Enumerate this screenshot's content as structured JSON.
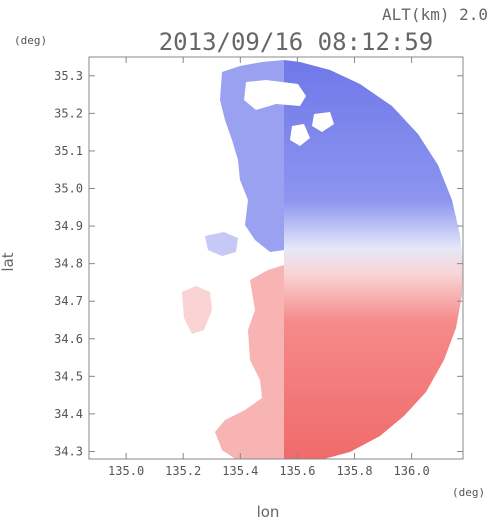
{
  "header": {
    "altitude": "ALT(km) 2.0",
    "timestamp": "2013/09/16 08:12:59"
  },
  "colors": {
    "approach": "#5a64e6",
    "recede": "#f05050",
    "neutral": "#f4f4f8",
    "frame": "#888888"
  },
  "chart_data": {
    "type": "heatmap",
    "title": "2013/09/16 08:12:59",
    "subtitle": "ALT(km) 2.0",
    "xlabel": "lon",
    "ylabel": "lat",
    "x_unit": "(deg)",
    "y_unit": "(deg)",
    "xlim": [
      134.87,
      136.18
    ],
    "ylim": [
      34.28,
      35.35
    ],
    "xticks": [
      135.0,
      135.2,
      135.4,
      135.6,
      135.8,
      136.0
    ],
    "xtick_labels": [
      "135.0",
      "135.2",
      "135.4",
      "135.6",
      "135.8",
      "136.0"
    ],
    "yticks": [
      34.3,
      34.4,
      34.5,
      34.6,
      34.7,
      34.8,
      34.9,
      35.0,
      35.1,
      35.2,
      35.3
    ],
    "ytick_labels": [
      "34.3",
      "34.4",
      "34.5",
      "34.6",
      "34.7",
      "34.8",
      "34.9",
      "35.0",
      "35.1",
      "35.2",
      "35.3"
    ],
    "grid": false,
    "radar_center": [
      135.59,
      34.82
    ],
    "coverage_west_edge_lon": 135.55,
    "pattern": "Doppler velocity field; blue (approaching) north of radar, red (receding) south of radar"
  }
}
